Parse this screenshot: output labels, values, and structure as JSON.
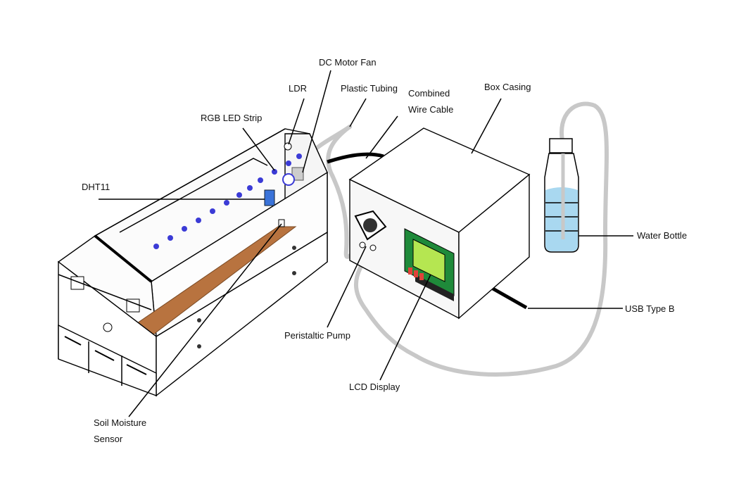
{
  "labels": {
    "dc_motor_fan": "DC Motor Fan",
    "ldr": "LDR",
    "plastic_tubing": "Plastic Tubing",
    "combined_wire_cable_1": "Combined",
    "combined_wire_cable_2": "Wire Cable",
    "box_casing": "Box Casing",
    "rgb_led_strip": "RGB LED Strip",
    "dht11": "DHT11",
    "water_bottle": "Water Bottle",
    "usb_type_b": "USB Type B",
    "peristaltic_pump": "Peristaltic Pump",
    "lcd_display": "LCD Display",
    "soil_moisture_sensor_1": "Soil Moisture",
    "soil_moisture_sensor_2": "Sensor"
  },
  "colors": {
    "led": "#3b3bd6",
    "soil": "#b8733f",
    "lcd_screen": "#b5e651",
    "lcd_frame": "#1f8a3a",
    "tubing": "#c8c8c8",
    "water": "#a9d8f0",
    "dht11": "#3a73d9",
    "button": "#e0433a"
  }
}
